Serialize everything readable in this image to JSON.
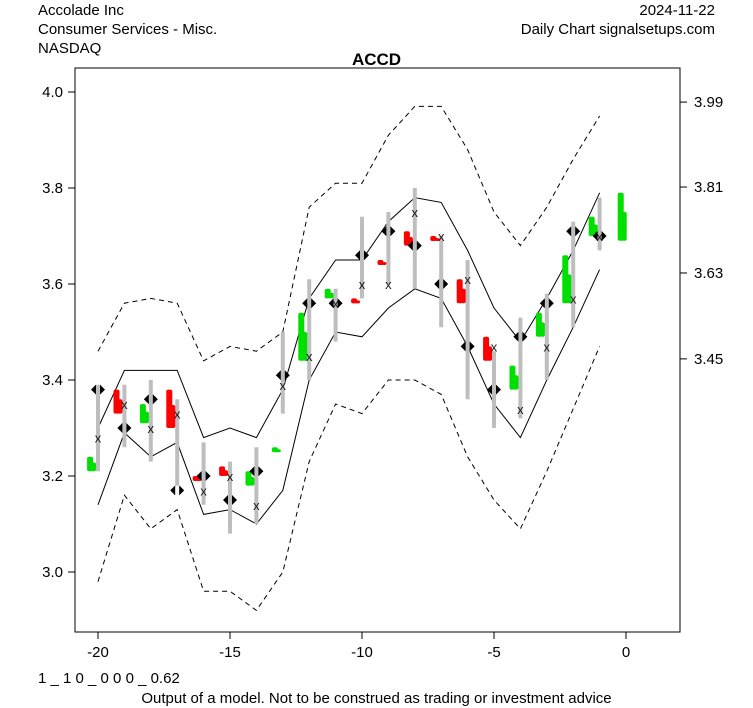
{
  "header": {
    "company": "Accolade Inc",
    "sector": "Consumer Services - Misc.",
    "exchange": "NASDAQ",
    "date": "2024-11-22",
    "source": "Daily Chart signalsetups.com"
  },
  "footer": {
    "code": "1 _ 1 0 _ 0 0 0 _ 0.62",
    "disclaimer": "Output of a model. Not to be construed as trading or investment advice"
  },
  "chart_data": {
    "type": "line",
    "title": "ACCD",
    "xlim": [
      -21,
      1.5
    ],
    "ylim": [
      2.89,
      4.05
    ],
    "x_ticks": [
      -20,
      -15,
      -10,
      -5,
      0
    ],
    "x_tick_labels": [
      "-20",
      "-15",
      "-10",
      "-5",
      "0"
    ],
    "y_ticks": [
      3.0,
      3.2,
      3.4,
      3.6,
      3.8,
      4.0
    ],
    "y_tick_labels": [
      "3.0",
      "3.2",
      "3.4",
      "3.6",
      "3.8",
      "4.0"
    ],
    "y_right_ticks": [
      3.979,
      3.802,
      3.623,
      3.444
    ],
    "y_right_tick_labels": [
      "3.99",
      "3.81",
      "3.63",
      "3.45"
    ],
    "colors": {
      "up": "#00e000",
      "down": "#ff0000",
      "range": "#bebebe",
      "band": "#000000"
    },
    "x": [
      -20,
      -19,
      -18,
      -17,
      -16,
      -15,
      -14,
      -13,
      -12,
      -11,
      -10,
      -9,
      -8,
      -7,
      -6,
      -5,
      -4,
      -3,
      -2,
      -1
    ],
    "range_low": [
      3.21,
      3.26,
      3.23,
      3.18,
      3.14,
      3.08,
      3.1,
      3.33,
      3.4,
      3.48,
      3.57,
      3.6,
      3.59,
      3.51,
      3.36,
      3.3,
      3.32,
      3.4,
      3.51,
      3.67
    ],
    "range_high": [
      3.39,
      3.39,
      3.4,
      3.36,
      3.27,
      3.23,
      3.26,
      3.5,
      3.61,
      3.59,
      3.74,
      3.75,
      3.8,
      3.7,
      3.65,
      3.46,
      3.53,
      3.58,
      3.73,
      3.78
    ],
    "diamond": [
      3.38,
      3.3,
      3.36,
      3.17,
      3.2,
      3.15,
      3.21,
      3.41,
      3.56,
      3.56,
      3.66,
      3.71,
      3.68,
      3.6,
      3.47,
      3.38,
      3.49,
      3.56,
      3.71,
      3.7
    ],
    "x_marker": [
      3.28,
      3.35,
      3.3,
      3.33,
      3.17,
      3.2,
      3.14,
      3.39,
      3.45,
      3.56,
      3.6,
      3.6,
      3.75,
      3.7,
      3.61,
      3.47,
      3.34,
      3.47,
      3.57,
      3.7
    ],
    "candles": [
      {
        "x": -20.3,
        "lo": 3.21,
        "hi": 3.24,
        "dir": "up"
      },
      {
        "x": -19.3,
        "lo": 3.33,
        "hi": 3.38,
        "dir": "down"
      },
      {
        "x": -18.3,
        "lo": 3.31,
        "hi": 3.35,
        "dir": "up"
      },
      {
        "x": -17.3,
        "lo": 3.3,
        "hi": 3.38,
        "dir": "down"
      },
      {
        "x": -16.3,
        "lo": 3.19,
        "hi": 3.2,
        "dir": "down"
      },
      {
        "x": -15.3,
        "lo": 3.2,
        "hi": 3.22,
        "dir": "down"
      },
      {
        "x": -14.3,
        "lo": 3.18,
        "hi": 3.21,
        "dir": "up"
      },
      {
        "x": -13.3,
        "lo": 3.25,
        "hi": 3.26,
        "dir": "up"
      },
      {
        "x": -12.3,
        "lo": 3.44,
        "hi": 3.54,
        "dir": "up"
      },
      {
        "x": -11.3,
        "lo": 3.57,
        "hi": 3.59,
        "dir": "up"
      },
      {
        "x": -10.3,
        "lo": 3.56,
        "hi": 3.57,
        "dir": "down"
      },
      {
        "x": -9.3,
        "lo": 3.64,
        "hi": 3.65,
        "dir": "down"
      },
      {
        "x": -8.3,
        "lo": 3.68,
        "hi": 3.71,
        "dir": "down"
      },
      {
        "x": -7.3,
        "lo": 3.69,
        "hi": 3.7,
        "dir": "down"
      },
      {
        "x": -6.3,
        "lo": 3.56,
        "hi": 3.61,
        "dir": "down"
      },
      {
        "x": -5.3,
        "lo": 3.44,
        "hi": 3.49,
        "dir": "down"
      },
      {
        "x": -4.3,
        "lo": 3.38,
        "hi": 3.43,
        "dir": "up"
      },
      {
        "x": -3.3,
        "lo": 3.49,
        "hi": 3.54,
        "dir": "up"
      },
      {
        "x": -2.3,
        "lo": 3.56,
        "hi": 3.66,
        "dir": "up"
      },
      {
        "x": -1.3,
        "lo": 3.7,
        "hi": 3.74,
        "dir": "up"
      },
      {
        "x": -0.2,
        "lo": 3.69,
        "hi": 3.79,
        "dir": "up"
      }
    ],
    "band_upper": [
      3.3,
      3.42,
      3.42,
      3.42,
      3.28,
      3.3,
      3.28,
      3.38,
      3.57,
      3.65,
      3.65,
      3.73,
      3.78,
      3.77,
      3.67,
      3.55,
      3.48,
      3.57,
      3.67,
      3.79
    ],
    "band_lower": [
      3.14,
      3.29,
      3.24,
      3.27,
      3.12,
      3.13,
      3.1,
      3.17,
      3.4,
      3.5,
      3.49,
      3.55,
      3.59,
      3.57,
      3.47,
      3.35,
      3.28,
      3.4,
      3.51,
      3.63
    ],
    "outer_upper": [
      3.46,
      3.56,
      3.57,
      3.56,
      3.44,
      3.47,
      3.46,
      3.5,
      3.76,
      3.81,
      3.81,
      3.91,
      3.97,
      3.97,
      3.88,
      3.75,
      3.68,
      3.76,
      3.86,
      3.95
    ],
    "outer_lower": [
      2.98,
      3.16,
      3.09,
      3.13,
      2.96,
      2.96,
      2.92,
      3.0,
      3.23,
      3.35,
      3.33,
      3.4,
      3.4,
      3.37,
      3.24,
      3.15,
      3.09,
      3.21,
      3.34,
      3.47
    ]
  }
}
